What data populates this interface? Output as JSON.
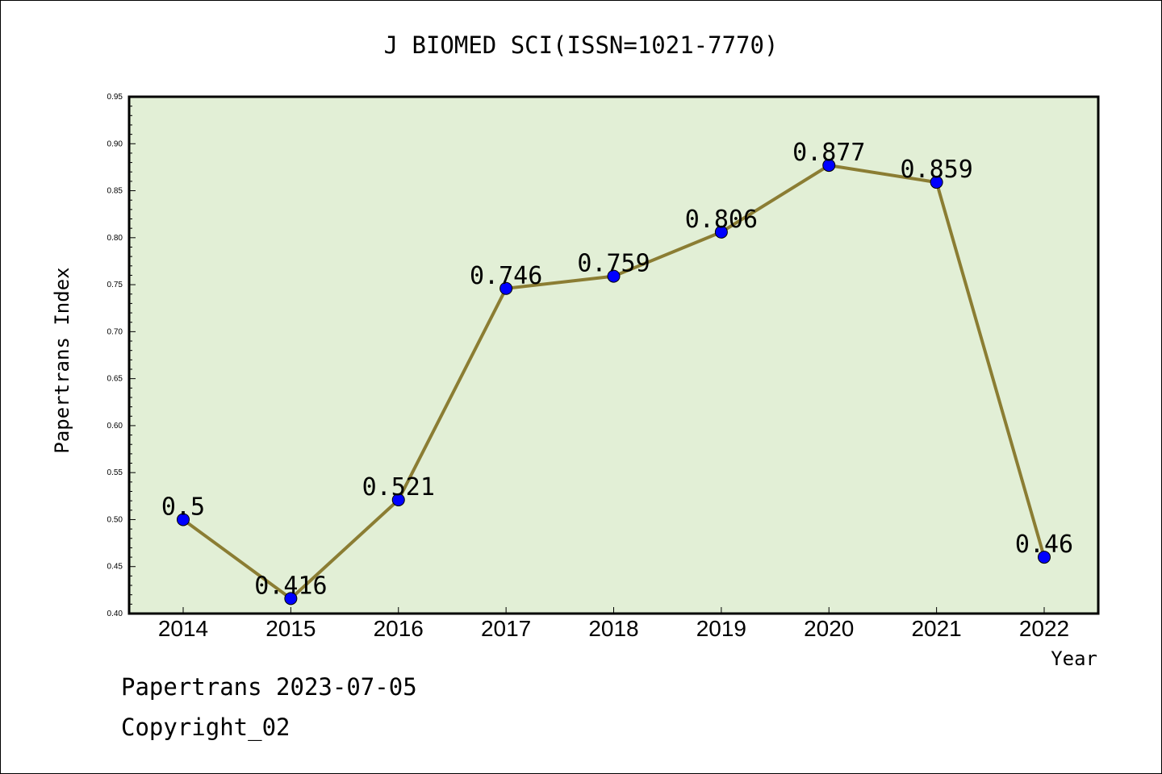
{
  "chart_data": {
    "type": "line",
    "title": "J BIOMED SCI(ISSN=1021-7770)",
    "xlabel": "Year",
    "ylabel": "Papertrans Index",
    "categories": [
      "2014",
      "2015",
      "2016",
      "2017",
      "2018",
      "2019",
      "2020",
      "2021",
      "2022"
    ],
    "series": [
      {
        "values": [
          0.5,
          0.416,
          0.521,
          0.746,
          0.759,
          0.806,
          0.877,
          0.859,
          0.46
        ],
        "labels": [
          "0.5",
          "0.416",
          "0.521",
          "0.746",
          "0.759",
          "0.806",
          "0.877",
          "0.859",
          "0.46"
        ]
      }
    ],
    "ylim": [
      0.4,
      0.95
    ],
    "yticks": [
      "0.40",
      "0.45",
      "0.50",
      "0.55",
      "0.60",
      "0.65",
      "0.70",
      "0.75",
      "0.80",
      "0.85",
      "0.90",
      "0.95"
    ],
    "grid": false,
    "colors": {
      "plot_background": "#e2efd6",
      "line": "#8b7d33",
      "marker": "#0000ff"
    }
  },
  "footer": {
    "line1": "Papertrans 2023-07-05",
    "line2": "Copyright_02"
  }
}
